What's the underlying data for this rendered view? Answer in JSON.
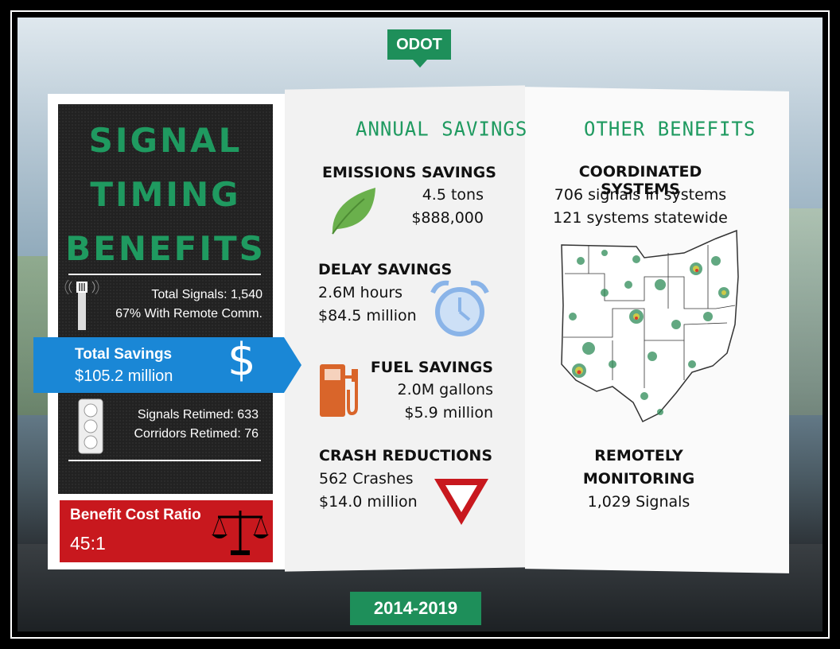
{
  "badge": "ODOT",
  "title": [
    "SIGNAL",
    "TIMING",
    "BENEFITS"
  ],
  "signals": {
    "total": "Total Signals: 1,540",
    "remote": "67% With Remote Comm."
  },
  "total_savings": {
    "label": "Total Savings",
    "value": "$105.2 million",
    "symbol": "$"
  },
  "retimed": {
    "signals": "Signals Retimed: 633",
    "corridors": "Corridors Retimed: 76"
  },
  "bcr": {
    "label": "Benefit Cost Ratio",
    "value": "45:1"
  },
  "annual": {
    "heading": "ANNUAL SAVINGS",
    "emissions": {
      "title": "EMISSIONS SAVINGS",
      "line1": "4.5 tons",
      "line2": "$888,000"
    },
    "delay": {
      "title": "DELAY SAVINGS",
      "line1": "2.6M hours",
      "line2": "$84.5 million"
    },
    "fuel": {
      "title": "FUEL SAVINGS",
      "line1": "2.0M gallons",
      "line2": "$5.9 million"
    },
    "crash": {
      "title": "CRASH REDUCTIONS",
      "line1": "562 Crashes",
      "line2": "$14.0 million"
    }
  },
  "other": {
    "heading": "OTHER BENEFITS",
    "coordinated": {
      "title": "COORDINATED SYSTEMS",
      "line1": "706 signals in systems",
      "line2": "121 systems statewide"
    },
    "remote": {
      "title1": "REMOTELY",
      "title2": "MONITORING",
      "line1": "1,029 Signals"
    }
  },
  "years": "2014-2019",
  "colors": {
    "green": "#1f9a60",
    "blue": "#1a87d6",
    "red": "#c8181e",
    "orange": "#d9652a",
    "clock": "#8ab4e8",
    "leaf": "#6ab04c"
  },
  "icons": [
    "antenna-icon",
    "dollar-icon",
    "traffic-light-icon",
    "scales-icon",
    "leaf-icon",
    "alarm-clock-icon",
    "fuel-pump-icon",
    "yield-sign-icon",
    "ohio-map"
  ]
}
